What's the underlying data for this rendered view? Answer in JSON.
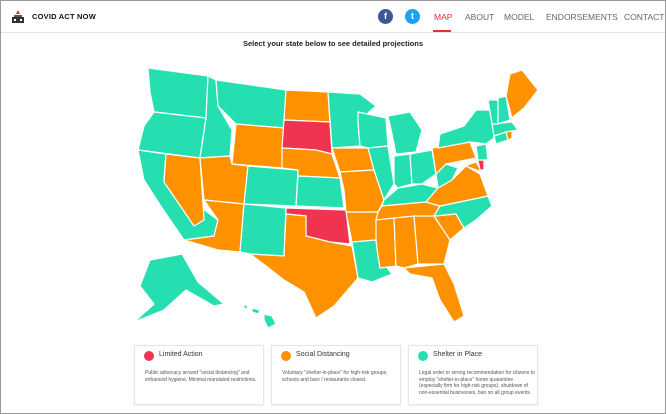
{
  "header": {
    "brand": "COVID ACT NOW",
    "facebook_icon": "f",
    "twitter_icon": "t",
    "nav": [
      "MAP",
      "ABOUT",
      "MODEL",
      "ENDORSEMENTS",
      "CONTACT"
    ],
    "active_nav": "MAP"
  },
  "page": {
    "subtitle": "Select your state below to see detailed projections"
  },
  "colors": {
    "limited": "#f0334f",
    "social": "#fe9100",
    "shelter": "#26dfb0",
    "accent": "#e0312f",
    "facebook": "#3b5998",
    "twitter": "#1da1f2"
  },
  "legend": {
    "limited": {
      "title": "Limited Action",
      "description": "Public advocacy around \"social distancing\" and enhanced hygiene. Minimal mandated restrictions."
    },
    "social": {
      "title": "Social Distancing",
      "description": "Voluntary \"shelter-in-place\" for high-risk groups, schools and bars / restaurants closed."
    },
    "shelter": {
      "title": "Shelter in Place",
      "description": "Legal order or strong recommendation for citizens to employ \"shelter-in-place\" home quarantine (especially firm for high-risk groups), shutdown of non-essential businesses, ban on all group events."
    }
  }
}
